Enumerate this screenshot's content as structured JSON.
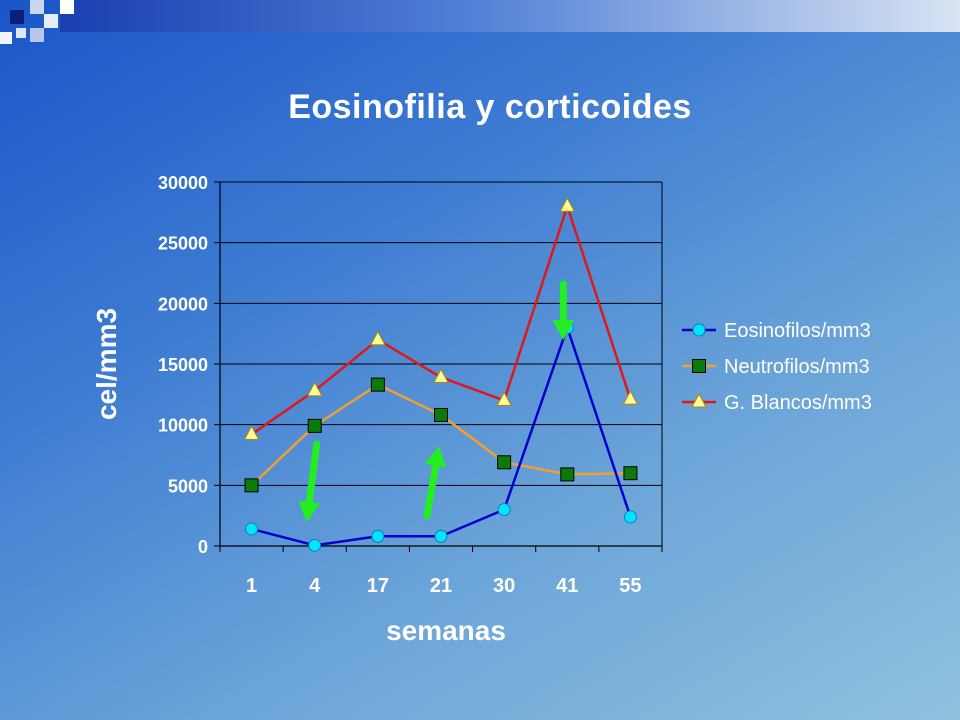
{
  "slide": {
    "title": "Eosinofilia y corticoides"
  },
  "colors": {
    "background_start": "#1a55c8",
    "background_end": "#8fc2de",
    "arrow": "#22ee22"
  },
  "chart_data": {
    "type": "line",
    "title": "",
    "xlabel": "semanas",
    "ylabel": "cel/mm3",
    "categories": [
      "1",
      "4",
      "17",
      "21",
      "30",
      "41",
      "55"
    ],
    "ylim": [
      0,
      30000
    ],
    "yticks": [
      0,
      5000,
      10000,
      15000,
      20000,
      25000,
      30000
    ],
    "grid": true,
    "legend_position": "right",
    "series": [
      {
        "name": "Eosinofilos/mm3",
        "color": "#0000cc",
        "marker": "circle",
        "marker_color": "#00e5ff",
        "values": [
          1400,
          50,
          800,
          800,
          3000,
          18000,
          2400
        ]
      },
      {
        "name": "Neutrofilos/mm3",
        "color": "#f0a030",
        "marker": "square",
        "marker_color": "#0b7a0b",
        "values": [
          5000,
          9900,
          13300,
          10800,
          6900,
          5900,
          6000
        ]
      },
      {
        "name": "G. Blancos/mm3",
        "color": "#e01818",
        "marker": "triangle",
        "marker_color": "#ffff99",
        "values": [
          9200,
          12800,
          17000,
          13900,
          12000,
          28000,
          12100
        ]
      }
    ],
    "annotations": [
      {
        "type": "arrow",
        "direction": "down",
        "at_category": "4"
      },
      {
        "type": "arrow",
        "direction": "up",
        "at_category": "21"
      },
      {
        "type": "arrow",
        "direction": "down",
        "at_category": "41"
      }
    ]
  }
}
